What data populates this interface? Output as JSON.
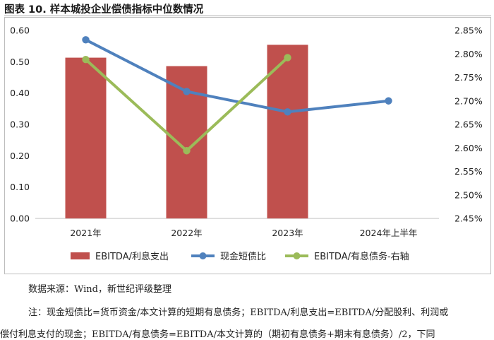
{
  "figure": {
    "title": "图表 10. 样本城投企业偿债指标中位数情况",
    "source": "数据来源：Wind，新世纪评级整理",
    "note_line1": "注：现金短债比=货币资金/本文计算的短期有息债务；EBITDA/利息支出=EBITDA/分配股利、利润或",
    "note_line2": "偿付利息支付的现金；EBITDA/有息债务=EBITDA/本文计算的（期初有息债务+期末有息债务）/2，下同"
  },
  "chart_data": {
    "type": "bar+line",
    "categories": [
      "2021年",
      "2022年",
      "2023年",
      "2024年上半年"
    ],
    "left_axis": {
      "ylim": [
        0.0,
        0.6
      ],
      "ticks": [
        "0.00",
        "0.10",
        "0.20",
        "0.30",
        "0.40",
        "0.50",
        "0.60"
      ]
    },
    "right_axis": {
      "ylim": [
        2.45,
        2.85
      ],
      "ticks": [
        "2.45%",
        "2.50%",
        "2.55%",
        "2.60%",
        "2.65%",
        "2.70%",
        "2.75%",
        "2.80%",
        "2.85%"
      ]
    },
    "series": [
      {
        "name": "EBITDA/利息支出",
        "type": "bar",
        "axis": "left",
        "color": "#c0504d",
        "values": [
          0.513,
          0.486,
          0.554,
          null
        ]
      },
      {
        "name": "现金短债比",
        "type": "line",
        "axis": "left",
        "color": "#4f81bd",
        "values": [
          0.57,
          0.405,
          0.34,
          0.375
        ]
      },
      {
        "name": "EBITDA/有息债务-右轴",
        "type": "line",
        "axis": "right",
        "color": "#9bbb59",
        "values": [
          2.788,
          2.594,
          2.792,
          null
        ]
      }
    ],
    "legend_position": "bottom"
  }
}
